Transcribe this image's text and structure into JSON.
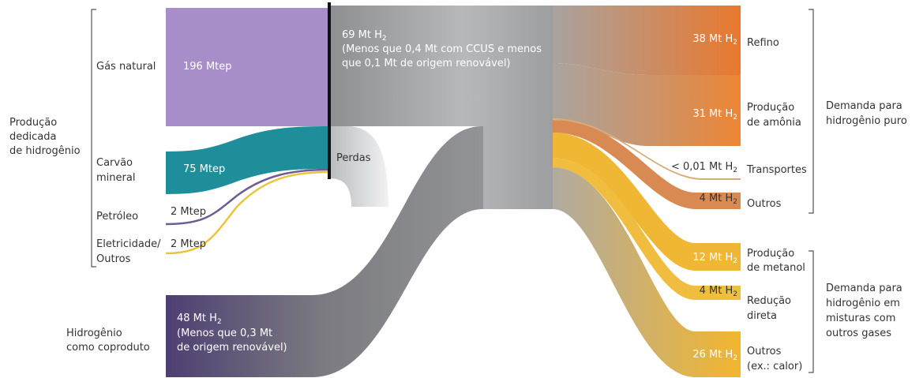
{
  "colors": {
    "gas": "#a88ec9",
    "coal": "#1f8e9b",
    "oil": "#6d5d92",
    "elec": "#e8c53a",
    "coproduct_start": "#4e3f73",
    "trunk": "#9ea0a2",
    "refino": "#e9782e",
    "amonia": "#ec8535",
    "transportes": "#d9ab79",
    "outros_pure": "#d88a52",
    "metanol": "#f0b735",
    "reducao": "#f1bd3e",
    "outros_mix": "#f2b62f",
    "divider": "#111111"
  },
  "sources": {
    "group_label": [
      "Produção",
      "dedicada",
      "de hidrogênio"
    ],
    "gas": {
      "label": "Gás natural",
      "value": "196 Mtep"
    },
    "coal": {
      "label": [
        "Carvão",
        "mineral"
      ],
      "value": "75 Mtep"
    },
    "oil": {
      "label": "Petróleo",
      "value": "2 Mtep"
    },
    "elec": {
      "label": [
        "Eletricidade/",
        "Outros"
      ],
      "value": "2 Mtep"
    },
    "coproduct": {
      "label": [
        "Hidrogênio",
        "como coproduto"
      ],
      "value": "48 Mt H",
      "sub": "2",
      "note": [
        "(Menos que 0,3 Mt",
        "de origem renovável)"
      ]
    }
  },
  "production": {
    "value": "69 Mt H",
    "sub": "2",
    "note": [
      "(Menos que 0,4 Mt com CCUS e menos",
      "que 0,1 Mt de origem renovável)"
    ],
    "losses": "Perdas"
  },
  "demand_pure": {
    "group_label": [
      "Demanda para",
      "hidrogênio puro"
    ],
    "items": [
      {
        "label": [
          "Refino"
        ],
        "value": "38 Mt H",
        "sub": "2"
      },
      {
        "label": [
          "Produção",
          "de amônia"
        ],
        "value": "31 Mt H",
        "sub": "2"
      },
      {
        "label": [
          "Transportes"
        ],
        "value": "< 0,01 Mt H",
        "sub": "2"
      },
      {
        "label": [
          "Outros"
        ],
        "value": "4 Mt H",
        "sub": "2"
      }
    ]
  },
  "demand_mix": {
    "group_label": [
      "Demanda para",
      "hidrogênio em",
      "misturas com",
      "outros gases"
    ],
    "items": [
      {
        "label": [
          "Produção",
          "de metanol"
        ],
        "value": "12 Mt H",
        "sub": "2"
      },
      {
        "label": [
          "Redução",
          "direta"
        ],
        "value": "4 Mt H",
        "sub": "2"
      },
      {
        "label": [
          "Outros",
          "(ex.: calor)"
        ],
        "value": "26 Mt H",
        "sub": "2"
      }
    ]
  }
}
